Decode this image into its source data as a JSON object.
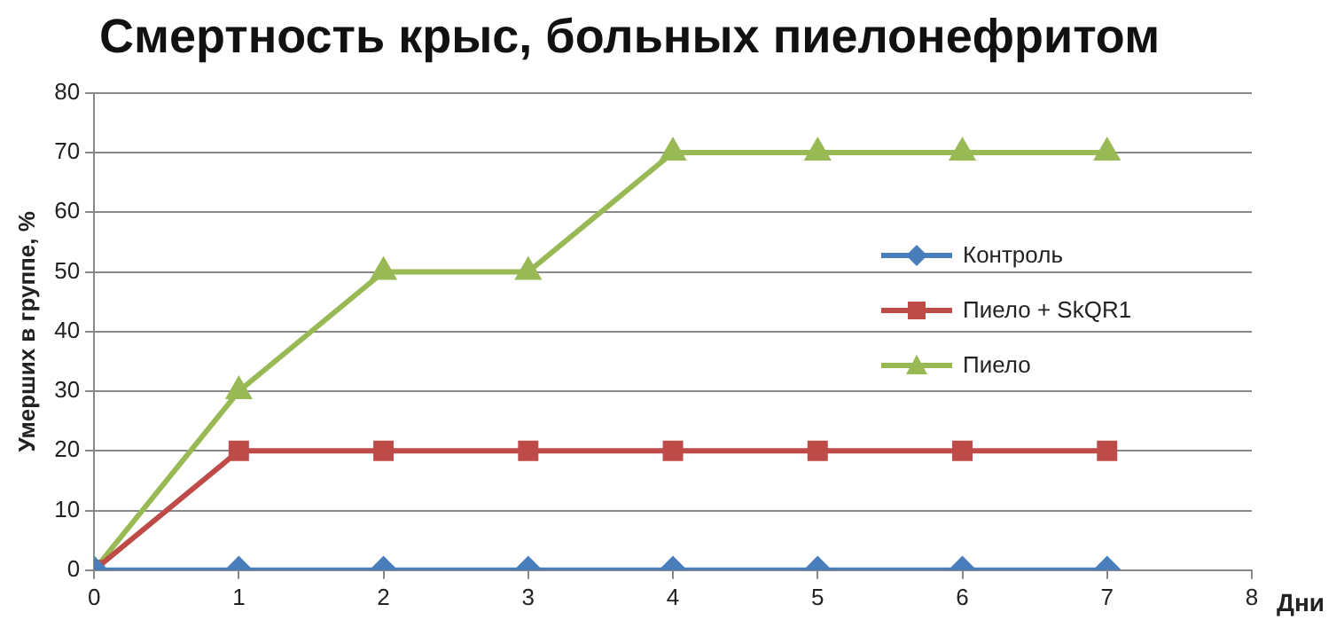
{
  "chart_data": {
    "type": "line",
    "title": "Смертность крыс, больных пиелонефритом",
    "xlabel": "Дни",
    "ylabel": "Умерших в группе, %",
    "x": [
      0,
      1,
      2,
      3,
      4,
      5,
      6,
      7
    ],
    "series": [
      {
        "name": "Контроль",
        "color": "#4a7ebb",
        "marker": "diamond",
        "values": [
          0,
          0,
          0,
          0,
          0,
          0,
          0,
          0
        ]
      },
      {
        "name": "Пиело + SkQR1",
        "color": "#be4b48",
        "marker": "square",
        "values": [
          0,
          20,
          20,
          20,
          20,
          20,
          20,
          20
        ]
      },
      {
        "name": "Пиело",
        "color": "#98b954",
        "marker": "triangle",
        "values": [
          0,
          30,
          50,
          50,
          70,
          70,
          70,
          70
        ]
      }
    ],
    "xlim": [
      0,
      8
    ],
    "xticks": [
      0,
      1,
      2,
      3,
      4,
      5,
      6,
      7,
      8
    ],
    "ylim": [
      0,
      80
    ],
    "yticks": [
      0,
      10,
      20,
      30,
      40,
      50,
      60,
      70,
      80
    ],
    "grid": "y",
    "legend": "center right",
    "line_style": "solid"
  }
}
